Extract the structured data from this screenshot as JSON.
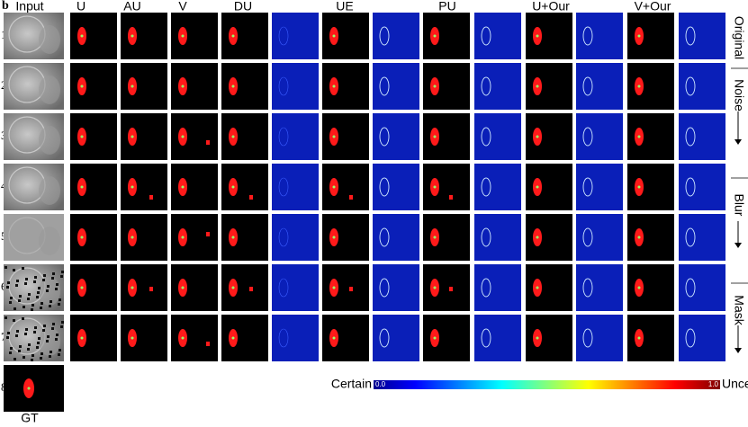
{
  "panel_label": "b",
  "columns": [
    "Input",
    "U",
    "AU",
    "V",
    "DU",
    "UE",
    "PU",
    "U+Our",
    "V+Our"
  ],
  "rows": [
    "1)",
    "2)",
    "3)",
    "4)",
    "5)",
    "6)",
    "7)",
    "8)"
  ],
  "groups": [
    "Original",
    "Noise",
    "Blur",
    "Mask"
  ],
  "colorbar": {
    "left": "Certain",
    "min": "0.0",
    "max": "1.0",
    "right": "Uncertain"
  },
  "gt_label": "GT"
}
